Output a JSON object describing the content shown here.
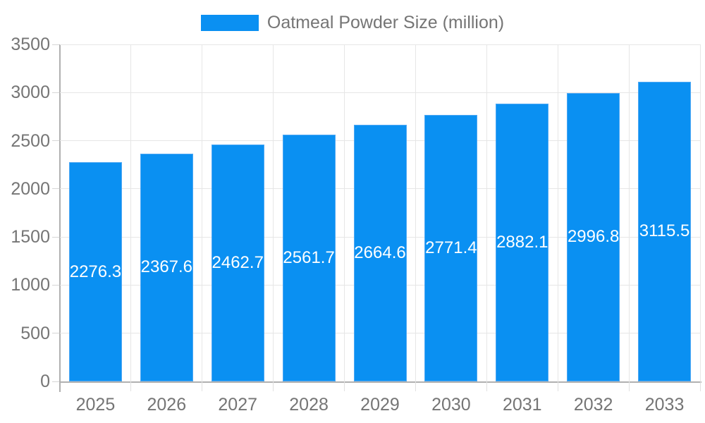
{
  "chart_data": {
    "type": "bar",
    "title": "Oatmeal Powder Size (million)",
    "legend_label": "Oatmeal Powder Size (million)",
    "legend_position": "top-center",
    "categories": [
      "2025",
      "2026",
      "2027",
      "2028",
      "2029",
      "2030",
      "2031",
      "2032",
      "2033"
    ],
    "values": [
      2276.3,
      2367.6,
      2462.7,
      2561.7,
      2664.6,
      2771.4,
      2882.1,
      2996.8,
      3115.5
    ],
    "xlabel": "",
    "ylabel": "",
    "ylim": [
      0,
      3500
    ],
    "yticks": [
      0,
      500,
      1000,
      1500,
      2000,
      2500,
      3000,
      3500
    ],
    "grid": true,
    "value_labels": "inside-center-white",
    "colors": {
      "bar": "#0a90f2",
      "bar_edge": "#4fa8f4",
      "gridline": "#e6e6e6",
      "axis_line": "#b0b0b0",
      "axis_text": "#757575",
      "value_text": "#ffffff",
      "background": "#ffffff"
    }
  }
}
